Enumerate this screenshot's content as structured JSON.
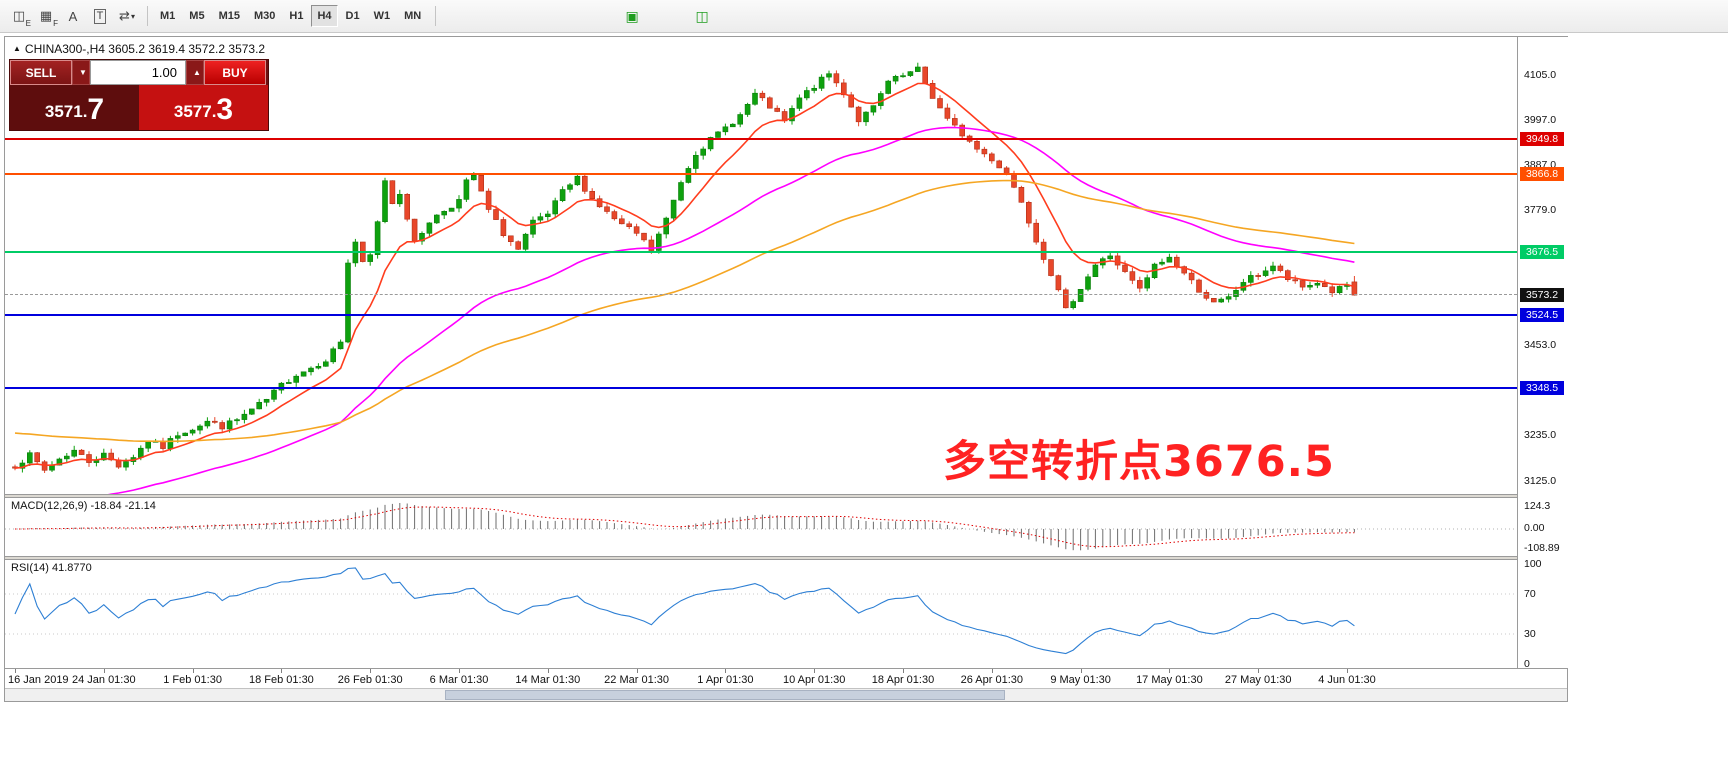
{
  "toolbar": {
    "tool_icons": [
      {
        "name": "wave-objects-icon",
        "glyph": "◫",
        "sub": "E"
      },
      {
        "name": "grid-objects-icon",
        "glyph": "▦",
        "sub": "F"
      },
      {
        "name": "text-label-tool-icon",
        "glyph": "A"
      },
      {
        "name": "text-box-tool-icon",
        "glyph": "T",
        "boxed": true
      },
      {
        "name": "line-studies-tool-icon",
        "glyph": "⇄",
        "caret": "▾"
      }
    ],
    "timeframes": [
      "M1",
      "M5",
      "M15",
      "M30",
      "H1",
      "H4",
      "D1",
      "W1",
      "MN"
    ],
    "active_timeframe": "H4",
    "extra_icons": [
      {
        "name": "green-indicator-icon-1",
        "glyph": "▣",
        "color": "#1f9d1f",
        "gap": 178
      },
      {
        "name": "green-indicator-icon-2",
        "glyph": "◫",
        "color": "#1f9d1f",
        "gap": 46
      }
    ]
  },
  "chart": {
    "collapse_glyph": "▲",
    "header": "CHINA300-,H4  3605.2 3619.4 3572.2 3573.2"
  },
  "trade_panel": {
    "sell_label": "SELL",
    "buy_label": "BUY",
    "volume": "1.00",
    "sell_price": "3571.7",
    "buy_price": "3577.3",
    "dec_glyph": "▼",
    "inc_glyph": "▲"
  },
  "price_axis": {
    "ticks": [
      {
        "label": "4105.0",
        "price": 4105.0
      },
      {
        "label": "3997.0",
        "price": 3997.0
      },
      {
        "label": "3887.0",
        "price": 3887.0
      },
      {
        "label": "3779.0",
        "price": 3779.0
      },
      {
        "label": "3453.0",
        "price": 3453.0
      },
      {
        "label": "3235.0",
        "price": 3235.0
      },
      {
        "label": "3125.0",
        "price": 3125.0
      }
    ],
    "line_labels": [
      {
        "label": "3949.8",
        "price": 3949.8,
        "color": "#dd0000",
        "name": "resistance-line-3949-8"
      },
      {
        "label": "3866.8",
        "price": 3866.8,
        "color": "#ff4f00",
        "name": "resistance-line-3866-8"
      },
      {
        "label": "3676.5",
        "price": 3676.5,
        "color": "#00cc66",
        "name": "pivot-line-3676-5"
      },
      {
        "label": "3573.2",
        "price": 3573.2,
        "color": "#111111",
        "name": "current-price-line",
        "dashed": true
      },
      {
        "label": "3524.5",
        "price": 3524.5,
        "color": "#0000dd",
        "name": "support-line-3524-5"
      },
      {
        "label": "3348.5",
        "price": 3348.5,
        "color": "#0000dd",
        "name": "support-line-3348-5"
      }
    ]
  },
  "annotation": {
    "text": "多空转折点3676.5",
    "color": "#ff2222"
  },
  "macd": {
    "label": "MACD(12,26,9) -18.84 -21.14",
    "axis_labels": [
      "124.3",
      "0.00",
      "-108.89"
    ]
  },
  "rsi": {
    "label": "RSI(14) 41.8770",
    "axis_labels": [
      "100",
      "70",
      "30",
      "0"
    ]
  },
  "time_axis": [
    "16 Jan 2019",
    "24 Jan 01:30",
    "1 Feb 01:30",
    "18 Feb 01:30",
    "26 Feb 01:30",
    "6 Mar 01:30",
    "14 Mar 01:30",
    "22 Mar 01:30",
    "1 Apr 01:30",
    "10 Apr 01:30",
    "18 Apr 01:30",
    "26 Apr 01:30",
    "9 May 01:30",
    "17 May 01:30",
    "27 May 01:30",
    "4 Jun 01:30"
  ],
  "chart_data": {
    "type": "candlestick",
    "symbol": "CHINA300-",
    "timeframe": "H4",
    "last_candle": {
      "open": 3605.2,
      "high": 3619.4,
      "low": 3572.2,
      "close": 3573.2
    },
    "current_price": 3573.2,
    "visible_price_range": [
      3125.0,
      4105.0
    ],
    "num_candles": 182,
    "close_anchors": [
      [
        0,
        3162
      ],
      [
        2,
        3186
      ],
      [
        4,
        3150
      ],
      [
        6,
        3178
      ],
      [
        8,
        3198
      ],
      [
        10,
        3172
      ],
      [
        12,
        3188
      ],
      [
        14,
        3162
      ],
      [
        16,
        3184
      ],
      [
        18,
        3222
      ],
      [
        20,
        3206
      ],
      [
        22,
        3238
      ],
      [
        24,
        3252
      ],
      [
        26,
        3268
      ],
      [
        28,
        3256
      ],
      [
        30,
        3272
      ],
      [
        32,
        3296
      ],
      [
        34,
        3320
      ],
      [
        36,
        3356
      ],
      [
        38,
        3382
      ],
      [
        40,
        3398
      ],
      [
        42,
        3418
      ],
      [
        44,
        3462
      ],
      [
        45,
        3652
      ],
      [
        46,
        3702
      ],
      [
        47,
        3648
      ],
      [
        48,
        3668
      ],
      [
        49,
        3748
      ],
      [
        50,
        3852
      ],
      [
        51,
        3796
      ],
      [
        52,
        3822
      ],
      [
        53,
        3762
      ],
      [
        54,
        3698
      ],
      [
        56,
        3752
      ],
      [
        58,
        3778
      ],
      [
        60,
        3802
      ],
      [
        61,
        3846
      ],
      [
        62,
        3862
      ],
      [
        63,
        3820
      ],
      [
        64,
        3778
      ],
      [
        66,
        3722
      ],
      [
        68,
        3682
      ],
      [
        70,
        3748
      ],
      [
        72,
        3768
      ],
      [
        74,
        3822
      ],
      [
        76,
        3856
      ],
      [
        78,
        3806
      ],
      [
        80,
        3772
      ],
      [
        82,
        3742
      ],
      [
        84,
        3722
      ],
      [
        86,
        3682
      ],
      [
        88,
        3756
      ],
      [
        90,
        3848
      ],
      [
        92,
        3918
      ],
      [
        94,
        3948
      ],
      [
        96,
        3978
      ],
      [
        98,
        4008
      ],
      [
        100,
        4058
      ],
      [
        102,
        4028
      ],
      [
        104,
        3992
      ],
      [
        106,
        4048
      ],
      [
        108,
        4078
      ],
      [
        110,
        4108
      ],
      [
        112,
        4062
      ],
      [
        114,
        3996
      ],
      [
        116,
        4026
      ],
      [
        118,
        4088
      ],
      [
        120,
        4102
      ],
      [
        122,
        4118
      ],
      [
        124,
        4052
      ],
      [
        126,
        3996
      ],
      [
        128,
        3962
      ],
      [
        130,
        3926
      ],
      [
        132,
        3902
      ],
      [
        134,
        3866
      ],
      [
        136,
        3802
      ],
      [
        138,
        3706
      ],
      [
        140,
        3626
      ],
      [
        142,
        3536
      ],
      [
        144,
        3592
      ],
      [
        146,
        3646
      ],
      [
        148,
        3670
      ],
      [
        150,
        3626
      ],
      [
        152,
        3586
      ],
      [
        154,
        3644
      ],
      [
        156,
        3664
      ],
      [
        158,
        3626
      ],
      [
        160,
        3586
      ],
      [
        162,
        3552
      ],
      [
        164,
        3566
      ],
      [
        166,
        3606
      ],
      [
        168,
        3624
      ],
      [
        170,
        3644
      ],
      [
        172,
        3612
      ],
      [
        174,
        3592
      ],
      [
        176,
        3604
      ],
      [
        178,
        3582
      ],
      [
        180,
        3596
      ],
      [
        181,
        3573.2
      ]
    ],
    "levels": [
      3949.8,
      3866.8,
      3676.5,
      3524.5,
      3348.5
    ],
    "moving_averages": [
      {
        "name": "fast-ma",
        "color": "#ff3d1e",
        "period": 10,
        "seed": 0
      },
      {
        "name": "mid-ma",
        "color": "#ff00ff",
        "period": 45,
        "seed": 3020
      },
      {
        "name": "slow-ma",
        "color": "#f5a623",
        "period": 90,
        "seed": 3242
      }
    ],
    "macd": {
      "fast": 12,
      "slow": 26,
      "signal": 9,
      "last": -18.84,
      "last_signal": -21.14,
      "axis_max": 124.3,
      "axis_min": -108.89
    },
    "rsi": {
      "period": 14,
      "last": 41.877,
      "levels": [
        70,
        30
      ]
    }
  }
}
